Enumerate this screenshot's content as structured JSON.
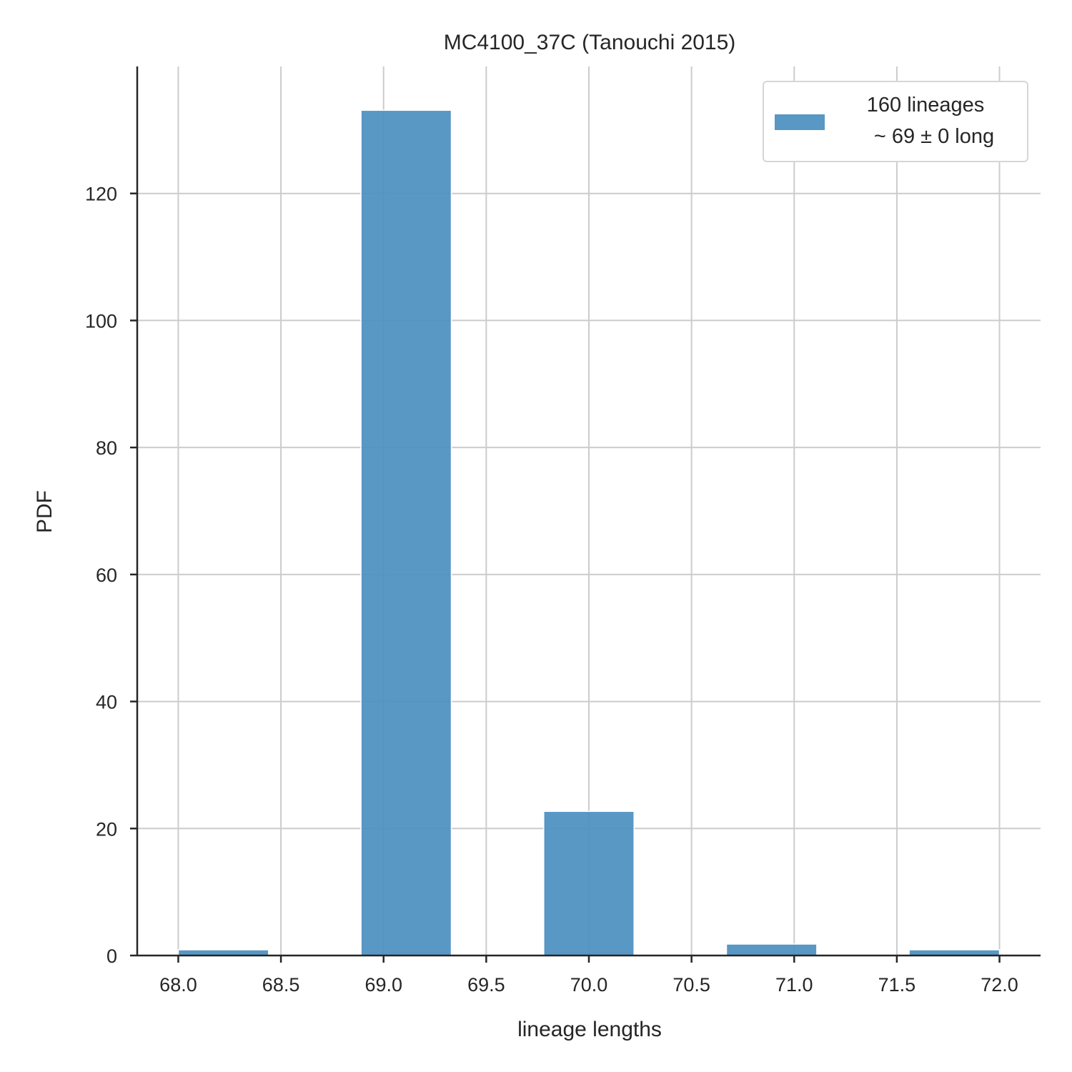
{
  "chart_data": {
    "type": "bar",
    "title": "MC4100_37C (Tanouchi 2015)",
    "xlabel": "lineage lengths",
    "ylabel": "PDF",
    "xlim": [
      67.8,
      72.2
    ],
    "ylim": [
      0,
      140
    ],
    "xticks": [
      68.0,
      68.5,
      69.0,
      69.5,
      70.0,
      70.5,
      71.0,
      71.5,
      72.0
    ],
    "xtick_labels": [
      "68.0",
      "68.5",
      "69.0",
      "69.5",
      "70.0",
      "70.5",
      "71.0",
      "71.5",
      "72.0"
    ],
    "yticks": [
      0,
      20,
      40,
      60,
      80,
      100,
      120
    ],
    "ytick_labels": [
      "0",
      "20",
      "40",
      "60",
      "80",
      "100",
      "120"
    ],
    "grid": true,
    "legend_position": "top-right",
    "bar_color": "#4c8fc1",
    "series": [
      {
        "legend_lines": [
          "160 lineages",
          "~ 69 ± 0 long"
        ],
        "bars": [
          {
            "x0": 68.0,
            "x1": 68.44,
            "value": 0.9
          },
          {
            "x0": 68.89,
            "x1": 69.33,
            "value": 133.1
          },
          {
            "x0": 69.78,
            "x1": 70.22,
            "value": 22.7
          },
          {
            "x0": 70.67,
            "x1": 71.11,
            "value": 1.8
          },
          {
            "x0": 71.56,
            "x1": 72.0,
            "value": 0.9
          }
        ]
      }
    ]
  }
}
